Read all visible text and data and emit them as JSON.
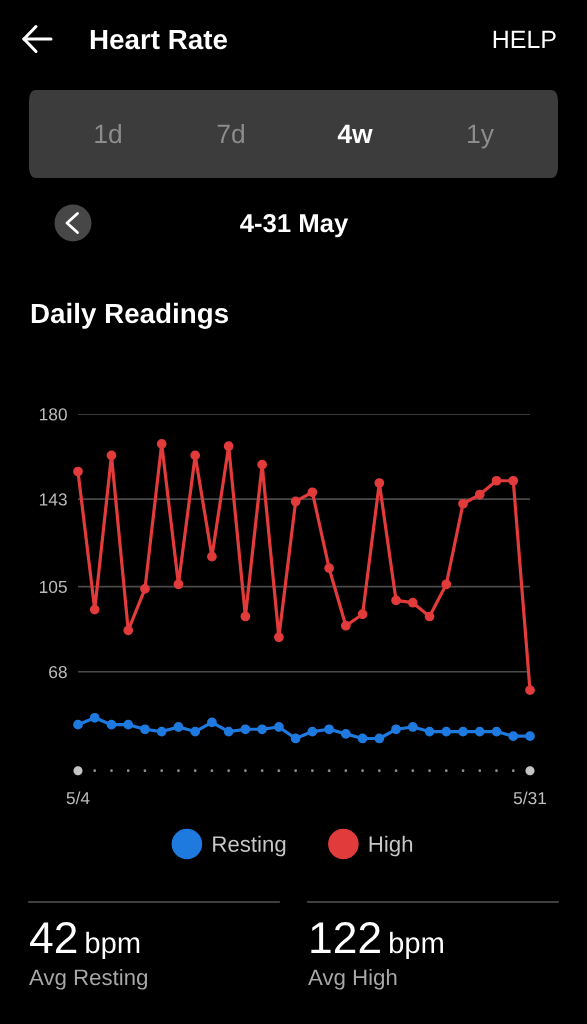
{
  "chart_data": {
    "type": "line",
    "title": "Heart Rate",
    "subtitle": "4-31 May",
    "annotations": [
      "HELP",
      "1d",
      "7d",
      "4w",
      "1y",
      "Daily Readings",
      "42",
      "bpm",
      "Avg Resting",
      "122",
      "bpm",
      "Avg High"
    ],
    "categories": [
      "5/4",
      null,
      null,
      null,
      null,
      null,
      null,
      null,
      null,
      null,
      null,
      null,
      null,
      null,
      null,
      null,
      null,
      null,
      null,
      null,
      null,
      null,
      null,
      null,
      null,
      null,
      null,
      "5/31"
    ],
    "series": [
      {
        "name": "Resting",
        "color": "#1f7ae0",
        "values": [
          45,
          48,
          45,
          45,
          43,
          42,
          44,
          42,
          46,
          42,
          43,
          43,
          44,
          39,
          42,
          43,
          41,
          39,
          39,
          43,
          44,
          42,
          42,
          42,
          42,
          42,
          40,
          40
        ]
      },
      {
        "name": "High",
        "color": "#e23b3b",
        "values": [
          155,
          95,
          162,
          86,
          104,
          167,
          106,
          162,
          118,
          166,
          92,
          158,
          83,
          142,
          146,
          113,
          88,
          93,
          150,
          99,
          98,
          92,
          106,
          141,
          145,
          151,
          151,
          60
        ]
      }
    ],
    "ylim": [
      25,
      180
    ],
    "yticks": [
      68,
      105,
      143,
      180
    ],
    "grid": "y",
    "legend": "bottom",
    "marker": "circle",
    "line_style": "solid"
  }
}
